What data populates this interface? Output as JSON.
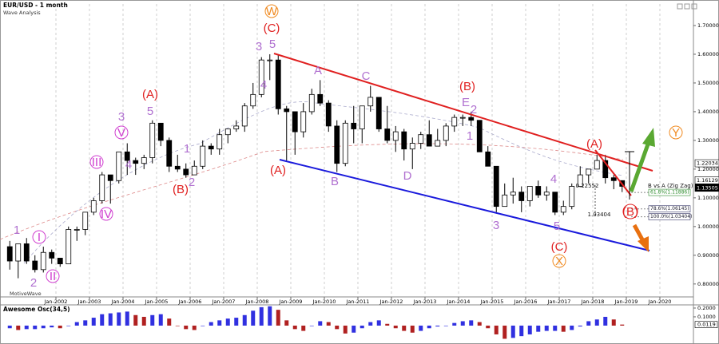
{
  "chart_data": [
    {
      "type": "candlestick",
      "title": "EUR/USD - 1 month",
      "subtitle": "Wave Analysis",
      "watermark": "MotiveWave",
      "x": [
        "2000-07",
        "2000-10",
        "2001-01",
        "2001-04",
        "2001-07",
        "2001-10",
        "2002-01",
        "2002-04",
        "2002-07",
        "2002-10",
        "2003-01",
        "2003-04",
        "2003-07",
        "2003-10",
        "2004-01",
        "2004-04",
        "2004-07",
        "2004-10",
        "2005-01",
        "2005-04",
        "2005-07",
        "2005-10",
        "2006-01",
        "2006-04",
        "2006-07",
        "2006-10",
        "2007-01",
        "2007-04",
        "2007-07",
        "2007-10",
        "2008-01",
        "2008-04",
        "2008-07",
        "2008-10",
        "2009-01",
        "2009-04",
        "2009-07",
        "2009-10",
        "2010-01",
        "2010-04",
        "2010-07",
        "2010-10",
        "2011-01",
        "2011-04",
        "2011-07",
        "2011-10",
        "2012-01",
        "2012-04",
        "2012-07",
        "2012-10",
        "2013-01",
        "2013-04",
        "2013-07",
        "2013-10",
        "2014-01",
        "2014-04",
        "2014-07",
        "2014-10",
        "2015-01",
        "2015-04",
        "2015-07",
        "2015-10",
        "2016-01",
        "2016-04",
        "2016-07",
        "2016-10",
        "2017-01",
        "2017-04",
        "2017-07",
        "2017-10",
        "2018-01",
        "2018-04",
        "2018-07",
        "2018-10"
      ],
      "open": [
        0.93,
        0.88,
        0.94,
        0.88,
        0.85,
        0.91,
        0.89,
        0.87,
        0.99,
        0.99,
        1.05,
        1.09,
        1.18,
        1.16,
        1.26,
        1.23,
        1.22,
        1.24,
        1.36,
        1.3,
        1.21,
        1.2,
        1.18,
        1.21,
        1.28,
        1.27,
        1.32,
        1.34,
        1.35,
        1.42,
        1.46,
        1.58,
        1.58,
        1.41,
        1.4,
        1.33,
        1.4,
        1.46,
        1.43,
        1.35,
        1.22,
        1.36,
        1.34,
        1.42,
        1.45,
        1.34,
        1.3,
        1.33,
        1.27,
        1.29,
        1.32,
        1.28,
        1.3,
        1.35,
        1.38,
        1.38,
        1.37,
        1.26,
        1.21,
        1.07,
        1.11,
        1.12,
        1.09,
        1.14,
        1.11,
        1.12,
        1.05,
        1.07,
        1.14,
        1.18,
        1.2,
        1.23,
        1.17,
        1.16
      ],
      "high": [
        0.95,
        0.94,
        0.96,
        0.9,
        0.93,
        0.92,
        0.89,
        1.0,
        1.0,
        1.05,
        1.1,
        1.19,
        1.18,
        1.26,
        1.29,
        1.24,
        1.25,
        1.37,
        1.36,
        1.31,
        1.25,
        1.22,
        1.23,
        1.3,
        1.29,
        1.34,
        1.34,
        1.37,
        1.43,
        1.5,
        1.59,
        1.6,
        1.6,
        1.42,
        1.4,
        1.43,
        1.48,
        1.51,
        1.44,
        1.37,
        1.37,
        1.42,
        1.42,
        1.49,
        1.45,
        1.42,
        1.35,
        1.34,
        1.31,
        1.33,
        1.37,
        1.34,
        1.36,
        1.39,
        1.39,
        1.4,
        1.37,
        1.28,
        1.21,
        1.15,
        1.17,
        1.14,
        1.14,
        1.16,
        1.14,
        1.12,
        1.09,
        1.15,
        1.21,
        1.2,
        1.25,
        1.25,
        1.18,
        1.16
      ],
      "low": [
        0.85,
        0.82,
        0.87,
        0.84,
        0.84,
        0.87,
        0.86,
        0.87,
        0.95,
        0.97,
        1.04,
        1.08,
        1.08,
        1.15,
        1.18,
        1.18,
        1.2,
        1.22,
        1.28,
        1.19,
        1.19,
        1.17,
        1.18,
        1.2,
        1.25,
        1.25,
        1.29,
        1.33,
        1.33,
        1.41,
        1.45,
        1.51,
        1.39,
        1.23,
        1.25,
        1.31,
        1.39,
        1.42,
        1.33,
        1.19,
        1.21,
        1.29,
        1.29,
        1.4,
        1.33,
        1.29,
        1.26,
        1.23,
        1.2,
        1.27,
        1.28,
        1.28,
        1.28,
        1.33,
        1.35,
        1.35,
        1.26,
        1.21,
        1.05,
        1.07,
        1.08,
        1.05,
        1.07,
        1.1,
        1.09,
        1.04,
        1.04,
        1.06,
        1.14,
        1.15,
        1.2,
        1.15,
        1.13,
        1.12
      ],
      "close": [
        0.88,
        0.94,
        0.88,
        0.85,
        0.91,
        0.89,
        0.87,
        0.99,
        0.99,
        1.05,
        1.09,
        1.18,
        1.16,
        1.26,
        1.23,
        1.22,
        1.24,
        1.36,
        1.3,
        1.21,
        1.2,
        1.18,
        1.21,
        1.28,
        1.27,
        1.32,
        1.34,
        1.35,
        1.42,
        1.46,
        1.58,
        1.58,
        1.41,
        1.4,
        1.33,
        1.4,
        1.46,
        1.43,
        1.35,
        1.22,
        1.36,
        1.34,
        1.42,
        1.45,
        1.34,
        1.3,
        1.33,
        1.27,
        1.29,
        1.32,
        1.28,
        1.3,
        1.35,
        1.38,
        1.38,
        1.37,
        1.26,
        1.21,
        1.07,
        1.11,
        1.12,
        1.09,
        1.14,
        1.11,
        1.12,
        1.05,
        1.07,
        1.14,
        1.18,
        1.2,
        1.23,
        1.17,
        1.16,
        1.14
      ],
      "xlim": [
        "2000-05",
        "2021-01"
      ],
      "xticks": [
        {
          "value": "2002-01",
          "label": "Jan-2002"
        },
        {
          "value": "2003-01",
          "label": "Jan-2003"
        },
        {
          "value": "2004-01",
          "label": "Jan-2004"
        },
        {
          "value": "2005-01",
          "label": "Jan-2005"
        },
        {
          "value": "2006-01",
          "label": "Jan-2006"
        },
        {
          "value": "2007-01",
          "label": "Jan-2007"
        },
        {
          "value": "2008-01",
          "label": "Jan-2008"
        },
        {
          "value": "2009-01",
          "label": "Jan-2009"
        },
        {
          "value": "2010-01",
          "label": "Jan-2010"
        },
        {
          "value": "2011-01",
          "label": "Jan-2011"
        },
        {
          "value": "2012-01",
          "label": "Jan-2012"
        },
        {
          "value": "2013-01",
          "label": "Jan-2013"
        },
        {
          "value": "2014-01",
          "label": "Jan-2014"
        },
        {
          "value": "2015-01",
          "label": "Jan-2015"
        },
        {
          "value": "2016-01",
          "label": "Jan-2016"
        },
        {
          "value": "2017-01",
          "label": "Jan-2017"
        },
        {
          "value": "2018-01",
          "label": "Jan-2018"
        },
        {
          "value": "2019-01",
          "label": "Jan-2019"
        },
        {
          "value": "2020-01",
          "label": "Jan-2020"
        }
      ],
      "ylim": [
        0.755,
        1.775
      ],
      "yticks": [
        {
          "value": 0.8,
          "label": "0.80000"
        },
        {
          "value": 0.9,
          "label": "0.90000"
        },
        {
          "value": 1.0,
          "label": "1.00000"
        },
        {
          "value": 1.1,
          "label": "1.10000"
        },
        {
          "value": 1.2,
          "label": "1.20000"
        },
        {
          "value": 1.3,
          "label": "1.30000"
        },
        {
          "value": 1.4,
          "label": "1.40000"
        },
        {
          "value": 1.5,
          "label": "1.50000"
        },
        {
          "value": 1.6,
          "label": "1.60000"
        },
        {
          "value": 1.7,
          "label": "1.70000"
        }
      ],
      "price_labels": [
        {
          "value": 1.22034,
          "label": "1.22034"
        },
        {
          "value": 1.16129,
          "label": "1.16129"
        },
        {
          "value": 1.13505,
          "label": "1.13505"
        }
      ],
      "fib_levels": [
        {
          "value": 1.11886,
          "label": "61.8%(1.11886)"
        },
        {
          "value": 1.06145,
          "label": "78.6%(1.06145)"
        },
        {
          "value": 1.03404,
          "label": "100.0%(1.03404)"
        }
      ],
      "annotations": [
        "W",
        "(C)",
        "5",
        "3",
        "4",
        "(A)",
        "5",
        "3",
        "V",
        "III",
        "4",
        "IV",
        "(B)",
        "2",
        "1",
        "I",
        "II",
        "2",
        "1",
        "(A)",
        "A",
        "B",
        "C",
        "D",
        "(B)",
        "E",
        "2",
        "1",
        "3",
        "5",
        "4",
        "(C)",
        "X",
        "(A)",
        "(B)",
        "Y",
        "B vs A (Zig Zag)",
        "0.22552",
        "1.03404"
      ]
    },
    {
      "type": "histogram-oscillator",
      "title": "Awesome Osc(34,5)",
      "values": [
        -0.03,
        -0.05,
        -0.04,
        -0.04,
        -0.03,
        -0.02,
        -0.03,
        0.0,
        0.04,
        0.06,
        0.09,
        0.13,
        0.14,
        0.15,
        0.16,
        0.12,
        0.1,
        0.12,
        0.13,
        0.08,
        0.0,
        -0.04,
        -0.05,
        0.0,
        0.04,
        0.06,
        0.08,
        0.09,
        0.12,
        0.17,
        0.21,
        0.22,
        0.18,
        0.06,
        -0.04,
        -0.06,
        0.0,
        0.05,
        0.04,
        -0.04,
        -0.09,
        -0.08,
        -0.03,
        0.04,
        0.06,
        0.02,
        -0.03,
        -0.06,
        -0.08,
        -0.06,
        -0.03,
        -0.01,
        0.0,
        0.03,
        0.05,
        0.06,
        0.04,
        -0.03,
        -0.1,
        -0.15,
        -0.14,
        -0.12,
        -0.1,
        -0.07,
        -0.06,
        -0.06,
        -0.07,
        -0.05,
        -0.01,
        0.05,
        0.07,
        0.1,
        0.07,
        0.0119
      ],
      "last_label": "0.0119",
      "ylim": [
        -0.155,
        0.227
      ],
      "yticks": [
        {
          "value": 0.2,
          "label": "0.2000"
        },
        {
          "value": 0.1,
          "label": "0.1000"
        }
      ]
    }
  ]
}
